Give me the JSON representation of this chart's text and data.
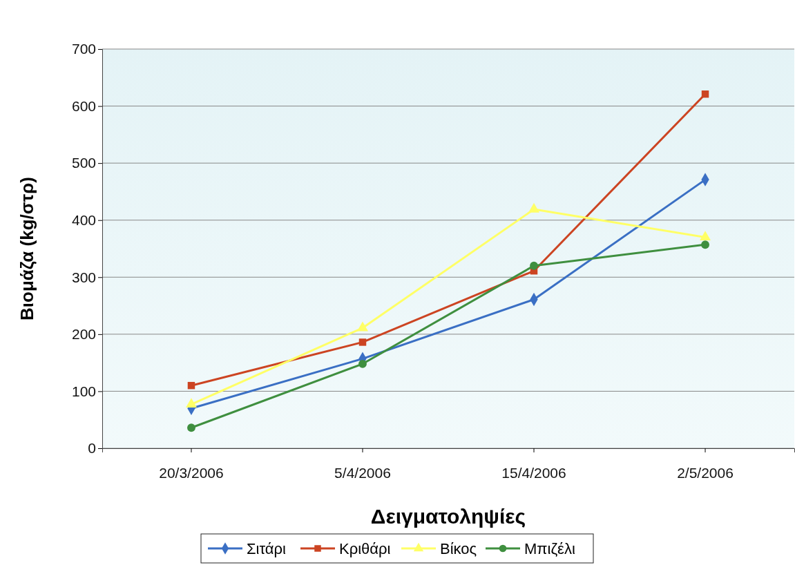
{
  "chart_data": {
    "type": "line",
    "xlabel": "Δειγματοληψίες",
    "ylabel": "Βιομάζα (kg/στρ)",
    "categories": [
      "20/3/2006",
      "5/4/2006",
      "15/4/2006",
      "2/5/2006"
    ],
    "ylim": [
      0,
      700
    ],
    "yticks": [
      0,
      100,
      200,
      300,
      400,
      500,
      600,
      700
    ],
    "grid": "y",
    "legend": "bottom",
    "series": [
      {
        "name": "Σιτάρι",
        "color": "#3a6fc4",
        "marker": "diamond",
        "values": [
          70,
          157,
          261,
          471
        ]
      },
      {
        "name": "Κριθάρι",
        "color": "#cc4422",
        "marker": "square",
        "values": [
          110,
          186,
          311,
          621
        ]
      },
      {
        "name": "Βίκος",
        "color": "#ffff66",
        "marker": "triangle",
        "values": [
          77,
          211,
          419,
          370
        ]
      },
      {
        "name": "Μπιζέλι",
        "color": "#3f8f3f",
        "marker": "circle",
        "values": [
          36,
          148,
          320,
          357
        ]
      }
    ]
  }
}
